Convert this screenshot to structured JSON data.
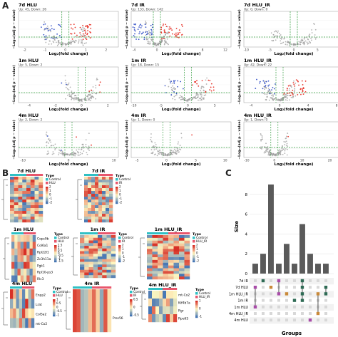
{
  "panels": {
    "A": "A",
    "B": "B",
    "C": "C"
  },
  "volcano": {
    "xlabel": "Log₂(fold change)",
    "ylabel": "−Log₁₀(adj p − value)",
    "plots": [
      {
        "title": "7d HLU",
        "subtitle": "Up: 45, Down: 26",
        "ticks": [
          "-2",
          "-1",
          "0",
          "1",
          "2"
        ],
        "xlim": [
          -2.3,
          2.6
        ]
      },
      {
        "title": "7d IR",
        "subtitle": "Up: 133, Down: 142",
        "ticks": [
          "-4",
          "0",
          "4",
          "8",
          "12"
        ],
        "xlim": [
          -4.5,
          13
        ]
      },
      {
        "title": "7d HLU_IR",
        "subtitle": "Up: 0, Down: 0",
        "ticks": [
          "-10",
          "-5",
          "0",
          "5",
          "10"
        ],
        "xlim": [
          -10.5,
          10.5
        ]
      },
      {
        "title": "1m HLU",
        "subtitle": "Up: 5, Down: 2",
        "ticks": [
          "-4",
          "-2",
          "0",
          "2"
        ],
        "xlim": [
          -4.8,
          2.8
        ]
      },
      {
        "title": "1m IR",
        "subtitle": "Up: 18, Down: 15",
        "ticks": [
          "-10",
          "-5",
          "0",
          "5"
        ],
        "xlim": [
          -10.5,
          8
        ]
      },
      {
        "title": "1m HLU_IR",
        "subtitle": "Up: 42, Down: 22",
        "ticks": [
          "-4",
          "0",
          "4",
          "8"
        ],
        "xlim": [
          -5,
          9
        ]
      },
      {
        "title": "4m HLU",
        "subtitle": "Up: 2, Down: 2",
        "ticks": [
          "-10",
          "0",
          "10"
        ],
        "xlim": [
          -11,
          11
        ]
      },
      {
        "title": "4m IR",
        "subtitle": "Up: 1, Down: 0",
        "ticks": [
          "-5",
          "0",
          "5",
          "10"
        ],
        "xlim": [
          -6,
          11
        ]
      },
      {
        "title": "4m HLU_IR",
        "subtitle": "Up: 1, Down: 0",
        "ticks": [
          "-10",
          "0",
          "10",
          "20"
        ],
        "xlim": [
          -11,
          25
        ]
      }
    ]
  },
  "heatmaps": {
    "type_label": "Type",
    "panels": [
      {
        "title": "7d HLU",
        "groups": [
          "Control",
          "HLU"
        ],
        "genes": [],
        "scale": [
          "2",
          "1",
          "0",
          "-1",
          "-2"
        ]
      },
      {
        "title": "7d IR",
        "groups": [
          "Control",
          "IR"
        ],
        "genes": [],
        "scale": [
          "2",
          "1",
          "0",
          "-1",
          "-2"
        ]
      },
      {
        "title": "1m HLU",
        "groups": [
          "Control",
          "HLU"
        ],
        "genes": [
          "Cops9b",
          "Col6a1",
          "Rpl22l1",
          "Zc3h11a",
          "Pgk1",
          "Rpl10-ps3",
          "Rlc3"
        ],
        "scale": [
          "1.5",
          "1",
          "0.5",
          "0",
          "-0.5",
          "-1",
          "-1.5"
        ]
      },
      {
        "title": "1m IR",
        "groups": [
          "Control",
          "IR"
        ],
        "genes": [],
        "scale": [
          "2",
          "1",
          "0",
          "-1",
          "-2"
        ]
      },
      {
        "title": "1m HLU_IR",
        "groups": [
          "Control",
          "HLU_IR"
        ],
        "genes": [],
        "scale": [
          "2",
          "1",
          "0",
          "-1",
          "-2"
        ]
      },
      {
        "title": "4m HLU",
        "groups": [
          "Control",
          "HLU"
        ],
        "genes": [
          "Enpp2",
          "Lrat",
          "Col5a2",
          "mt-Co2"
        ],
        "scale": [
          "1",
          "0.5",
          "0",
          "-0.5",
          "-1"
        ]
      },
      {
        "title": "4m IR",
        "groups": [
          "Control",
          "IR"
        ],
        "genes": [
          "Prss56"
        ],
        "scale": [
          "0.5",
          "0",
          "-0.5"
        ]
      },
      {
        "title": "4m HLU_IR",
        "groups": [
          "Control",
          "HLU_IR"
        ],
        "genes": [
          "mt-Co2",
          "Kif4b7a",
          "Rgr",
          "Rpe65"
        ],
        "scale": [
          "1",
          "0",
          "-1"
        ]
      }
    ]
  },
  "colors": {
    "up": "#e8392f",
    "down": "#3a56c8",
    "ns": "#9a9a9a",
    "threshold": "#2e9a3a",
    "control": "#2fc0c4",
    "treat": "#e8566c",
    "heat_hi": "#d73027",
    "heat_mid": "#fff7c0",
    "heat_lo": "#4575b4",
    "bar": "#5a5a5a",
    "dot_off": "#d8d8d8"
  },
  "chart_data": {
    "type": "bar",
    "title": "",
    "ylabel": "Size",
    "xlabel": "Groups",
    "yticks": [
      "0",
      "2",
      "4",
      "6",
      "8"
    ],
    "ylim": [
      0,
      9.5
    ],
    "sets": [
      "7d IR",
      "7d HLU",
      "1m HLU_IR",
      "1m IR",
      "1m HLU",
      "4m HLU_IR",
      "4m HLU"
    ],
    "values": [
      1,
      2,
      9,
      1,
      3,
      1,
      5,
      2,
      1,
      1
    ],
    "memberships": [
      [
        1,
        4
      ],
      [
        0
      ],
      [
        1
      ],
      [
        0,
        2
      ],
      [
        2
      ],
      [
        3
      ],
      [
        0,
        1,
        2,
        3
      ],
      [
        6
      ],
      [
        2,
        5
      ],
      [
        1,
        2
      ]
    ],
    "member_colors": [
      "#a84ca8",
      "#2f6b55",
      "#c98a3a",
      "#a84ca8",
      "#c98a3a",
      "#2f6b55",
      "#2f6b55",
      "#a84ca8",
      "#c98a3a",
      "#2f6b55"
    ]
  }
}
